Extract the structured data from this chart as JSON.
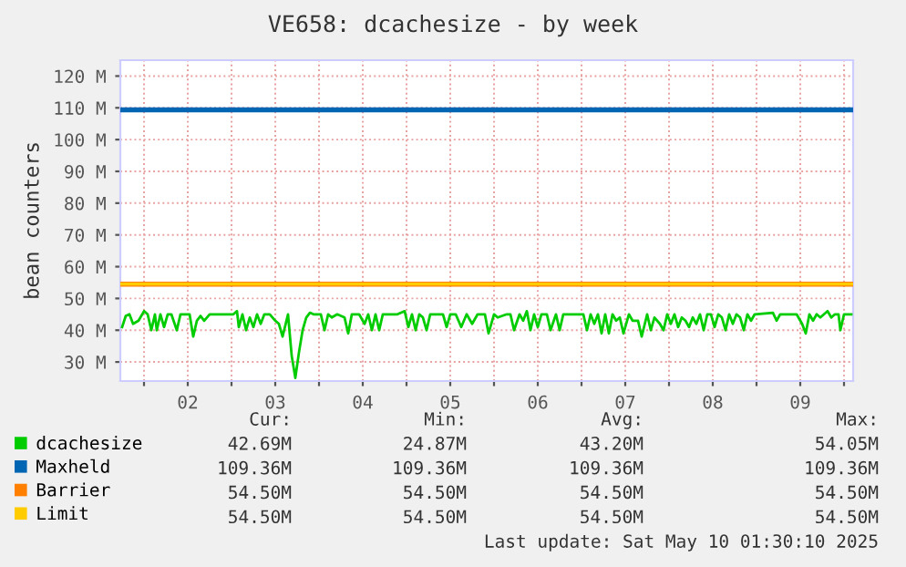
{
  "chart_data": {
    "type": "line",
    "title": "VE658: dcachesize - by week",
    "ylabel": "bean counters",
    "xlim": [
      "2025-05-01T17:30",
      "2025-05-10T02:30"
    ],
    "ylim": [
      24,
      125
    ],
    "xticks": [
      {
        "value": "2025-05-02T00:00",
        "label": null
      },
      {
        "value": "2025-05-02T12:00",
        "label": "02"
      },
      {
        "value": "2025-05-03T00:00",
        "label": null
      },
      {
        "value": "2025-05-03T12:00",
        "label": "03"
      },
      {
        "value": "2025-05-04T00:00",
        "label": null
      },
      {
        "value": "2025-05-04T12:00",
        "label": "04"
      },
      {
        "value": "2025-05-05T00:00",
        "label": null
      },
      {
        "value": "2025-05-05T12:00",
        "label": "05"
      },
      {
        "value": "2025-05-06T00:00",
        "label": null
      },
      {
        "value": "2025-05-06T12:00",
        "label": "06"
      },
      {
        "value": "2025-05-07T00:00",
        "label": null
      },
      {
        "value": "2025-05-07T12:00",
        "label": "07"
      },
      {
        "value": "2025-05-08T00:00",
        "label": null
      },
      {
        "value": "2025-05-08T12:00",
        "label": "08"
      },
      {
        "value": "2025-05-09T00:00",
        "label": null
      },
      {
        "value": "2025-05-09T12:00",
        "label": "09"
      },
      {
        "value": "2025-05-10T00:00",
        "label": null
      }
    ],
    "yticks": [
      {
        "value": 30,
        "label": "30 M"
      },
      {
        "value": 40,
        "label": "40 M"
      },
      {
        "value": 50,
        "label": "50 M"
      },
      {
        "value": 60,
        "label": "60 M"
      },
      {
        "value": 70,
        "label": "70 M"
      },
      {
        "value": 80,
        "label": "80 M"
      },
      {
        "value": 90,
        "label": "90 M"
      },
      {
        "value": 100,
        "label": "100 M"
      },
      {
        "value": 110,
        "label": "110 M"
      },
      {
        "value": 120,
        "label": "120 M"
      }
    ],
    "grid": true,
    "legend": "bottom",
    "line_style": "solid",
    "series": [
      {
        "name": "dcachesize",
        "color": "#00cc00",
        "x": [
          "2025-05-01T18:00",
          "2025-05-01T19:00",
          "2025-05-01T20:00",
          "2025-05-01T21:00",
          "2025-05-01T22:30",
          "2025-05-02T00:00",
          "2025-05-02T01:00",
          "2025-05-02T02:00",
          "2025-05-02T03:00",
          "2025-05-02T03:30",
          "2025-05-02T04:30",
          "2025-05-02T05:30",
          "2025-05-02T06:30",
          "2025-05-02T07:30",
          "2025-05-02T09:00",
          "2025-05-02T10:00",
          "2025-05-02T11:00",
          "2025-05-02T12:30",
          "2025-05-02T13:30",
          "2025-05-02T14:30",
          "2025-05-02T15:30",
          "2025-05-02T16:30",
          "2025-05-02T18:00",
          "2025-05-02T20:30",
          "2025-05-03T00:30",
          "2025-05-03T01:30",
          "2025-05-03T02:00",
          "2025-05-03T03:00",
          "2025-05-03T04:00",
          "2025-05-03T05:00",
          "2025-05-03T06:00",
          "2025-05-03T07:00",
          "2025-05-03T08:00",
          "2025-05-03T09:00",
          "2025-05-03T10:30",
          "2025-05-03T12:00",
          "2025-05-03T13:00",
          "2025-05-03T14:00",
          "2025-05-03T15:30",
          "2025-05-03T16:30",
          "2025-05-03T17:30",
          "2025-05-03T18:30",
          "2025-05-03T19:30",
          "2025-05-03T20:30",
          "2025-05-03T21:30",
          "2025-05-03T22:30",
          "2025-05-03T23:30",
          "2025-05-04T00:30",
          "2025-05-04T01:30",
          "2025-05-04T02:30",
          "2025-05-04T03:30",
          "2025-05-04T05:00",
          "2025-05-04T07:00",
          "2025-05-04T08:00",
          "2025-05-04T09:00",
          "2025-05-04T11:00",
          "2025-05-04T12:30",
          "2025-05-04T13:30",
          "2025-05-04T14:30",
          "2025-05-04T15:30",
          "2025-05-04T16:30",
          "2025-05-04T17:30",
          "2025-05-04T20:00",
          "2025-05-04T21:30",
          "2025-05-04T23:30",
          "2025-05-05T00:30",
          "2025-05-05T01:30",
          "2025-05-05T02:30",
          "2025-05-05T03:30",
          "2025-05-05T04:30",
          "2025-05-05T05:30",
          "2025-05-05T06:30",
          "2025-05-05T08:30",
          "2025-05-05T10:00",
          "2025-05-05T11:00",
          "2025-05-05T12:00",
          "2025-05-05T13:30",
          "2025-05-05T15:00",
          "2025-05-05T16:30",
          "2025-05-05T18:00",
          "2025-05-05T19:30",
          "2025-05-05T20:30",
          "2025-05-05T21:30",
          "2025-05-05T22:30",
          "2025-05-06T00:00",
          "2025-05-06T01:00",
          "2025-05-06T03:30",
          "2025-05-06T04:30",
          "2025-05-06T05:30",
          "2025-05-06T07:00",
          "2025-05-06T08:00",
          "2025-05-06T09:00",
          "2025-05-06T10:00",
          "2025-05-06T11:00",
          "2025-05-06T12:00",
          "2025-05-06T13:00",
          "2025-05-06T14:30",
          "2025-05-06T15:30",
          "2025-05-06T17:00",
          "2025-05-06T18:00",
          "2025-05-06T19:00",
          "2025-05-06T20:30",
          "2025-05-07T00:30",
          "2025-05-07T01:30",
          "2025-05-07T02:30",
          "2025-05-07T03:30",
          "2025-05-07T04:30",
          "2025-05-07T05:30",
          "2025-05-07T06:30",
          "2025-05-07T07:30",
          "2025-05-07T08:30",
          "2025-05-07T09:30",
          "2025-05-07T10:30",
          "2025-05-07T11:30",
          "2025-05-07T13:00",
          "2025-05-07T14:00",
          "2025-05-07T15:30",
          "2025-05-07T16:30",
          "2025-05-07T18:00",
          "2025-05-07T19:00",
          "2025-05-07T20:00",
          "2025-05-07T21:30",
          "2025-05-07T22:30",
          "2025-05-07T23:30",
          "2025-05-08T00:30",
          "2025-05-08T01:30",
          "2025-05-08T02:30",
          "2025-05-08T03:30",
          "2025-05-08T04:30",
          "2025-05-08T05:30",
          "2025-05-08T06:30",
          "2025-05-08T07:30",
          "2025-05-08T08:30",
          "2025-05-08T09:30",
          "2025-05-08T10:30",
          "2025-05-08T11:30",
          "2025-05-08T12:30",
          "2025-05-08T13:30",
          "2025-05-08T14:30",
          "2025-05-08T15:30",
          "2025-05-08T16:30",
          "2025-05-08T17:30",
          "2025-05-08T18:30",
          "2025-05-08T19:30",
          "2025-05-08T20:30",
          "2025-05-08T21:30",
          "2025-05-08T22:30",
          "2025-05-08T23:30",
          "2025-05-09T04:30",
          "2025-05-09T05:30",
          "2025-05-09T06:30",
          "2025-05-09T11:00",
          "2025-05-09T12:30",
          "2025-05-09T13:30",
          "2025-05-09T14:30",
          "2025-05-09T15:30",
          "2025-05-09T16:30",
          "2025-05-09T17:30",
          "2025-05-09T18:30",
          "2025-05-09T19:30",
          "2025-05-09T20:30",
          "2025-05-09T21:30",
          "2025-05-09T22:30",
          "2025-05-09T23:00",
          "2025-05-10T00:00",
          "2025-05-10T02:00"
        ],
        "values": [
          41,
          44.5,
          45,
          42,
          43,
          46,
          45,
          40,
          45,
          40,
          45,
          41,
          45,
          45,
          40,
          45,
          45,
          45,
          38,
          43,
          44.5,
          43,
          45,
          45,
          45,
          46,
          41,
          45,
          40,
          44,
          41,
          45,
          42,
          45,
          45,
          43,
          42,
          38,
          45,
          32,
          25,
          33,
          40,
          44,
          45.5,
          45,
          45,
          45,
          40,
          45,
          44,
          45,
          44,
          39,
          45,
          45,
          42,
          45,
          40,
          45,
          40,
          45,
          45,
          45,
          46,
          41,
          45,
          40,
          45,
          44,
          40,
          45,
          45,
          45,
          41,
          45,
          45,
          41,
          45,
          42,
          45,
          45,
          45,
          39,
          45,
          44,
          45,
          45,
          40,
          45,
          43,
          46,
          40,
          45,
          41,
          45,
          45,
          40,
          45,
          40,
          45,
          45,
          45,
          40,
          45,
          42,
          45,
          39,
          45,
          39,
          45,
          43,
          44,
          39,
          45,
          43,
          43,
          38,
          45,
          40,
          44,
          42,
          40,
          45,
          42,
          45,
          41,
          44,
          43,
          41,
          44,
          42,
          45,
          40,
          45,
          45,
          41,
          45,
          44,
          40,
          45,
          42,
          45,
          44,
          40,
          45,
          43,
          45,
          45.5,
          43,
          45,
          45,
          42,
          39,
          45,
          43,
          45,
          44,
          45,
          46,
          44,
          45,
          45,
          40,
          45,
          45
        ]
      },
      {
        "name": "Maxheld",
        "color": "#0066b3",
        "x": [
          "2025-05-01T17:30",
          "2025-05-10T02:30"
        ],
        "values": [
          109.36,
          109.36
        ]
      },
      {
        "name": "Barrier",
        "color": "#ff8000",
        "x": [
          "2025-05-01T17:30",
          "2025-05-10T02:30"
        ],
        "values": [
          54.5,
          54.5
        ]
      },
      {
        "name": "Limit",
        "color": "#ffcc00",
        "x": [
          "2025-05-01T17:30",
          "2025-05-10T02:30"
        ],
        "values": [
          54.5,
          54.5
        ]
      }
    ],
    "annotations": [
      "Cur:",
      "Min:",
      "Avg:",
      "Max:",
      "42.69M",
      "24.87M",
      "43.20M",
      "54.05M",
      "109.36M",
      "109.36M",
      "109.36M",
      "109.36M",
      "54.50M",
      "54.50M",
      "54.50M",
      "54.50M",
      "54.50M",
      "54.50M",
      "54.50M",
      "54.50M",
      "Last update: Sat May 10 01:30:10 2025"
    ]
  }
}
